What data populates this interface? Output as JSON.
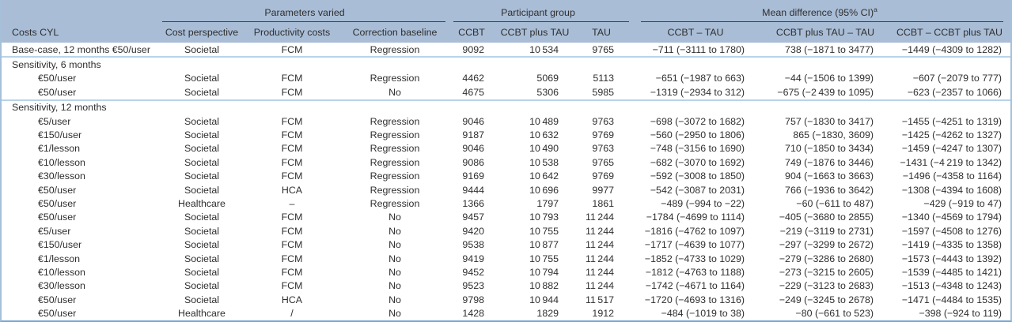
{
  "colors": {
    "header_background": "#a9bdd6",
    "header_rule": "#3c3c3c",
    "section_separator": "#b7d4ea",
    "outer_border": "#79a7d2",
    "text": "#2f2f2f"
  },
  "table": {
    "corner_label": "Costs CYL",
    "groups": [
      {
        "label": "Parameters varied",
        "sup": "",
        "sub": [
          "Cost perspective",
          "Productivity costs",
          "Correction baseline"
        ]
      },
      {
        "label": "Participant group",
        "sup": "",
        "sub": [
          "CCBT",
          "CCBT plus TAU",
          "TAU"
        ]
      },
      {
        "label": "Mean difference (95% CI)",
        "sup": "a",
        "sub": [
          "CCBT – TAU",
          "CCBT plus TAU – TAU",
          "CCBT – CCBT plus TAU"
        ]
      }
    ],
    "sections": [
      {
        "title": "",
        "rows": [
          {
            "indent": false,
            "cells": [
              "Base-case, 12 months €50/user",
              "Societal",
              "FCM",
              "Regression",
              "9092",
              "10 534",
              "9765",
              "−711 (−3111 to 1780)",
              "738 (−1871 to 3477)",
              "−1449 (−4309 to 1282)"
            ]
          }
        ]
      },
      {
        "title": "Sensitivity, 6 months",
        "rows": [
          {
            "indent": true,
            "cells": [
              "€50/user",
              "Societal",
              "FCM",
              "Regression",
              "4462",
              "5069",
              "5113",
              "−651 (−1987 to 663)",
              "−44 (−1506 to 1399)",
              "−607 (−2079 to 777)"
            ]
          },
          {
            "indent": true,
            "cells": [
              "€50/user",
              "Societal",
              "FCM",
              "No",
              "4675",
              "5306",
              "5985",
              "−1319 (−2934 to 312)",
              "−675 (−2 439 to 1095)",
              "−623 (−2357 to 1066)"
            ]
          }
        ]
      },
      {
        "title": "Sensitivity, 12 months",
        "rows": [
          {
            "indent": true,
            "cells": [
              "€5/user",
              "Societal",
              "FCM",
              "Regression",
              "9046",
              "10 489",
              "9763",
              "−698 (−3072 to 1682)",
              "757 (−1830 to 3417)",
              "−1455 (−4251 to 1319)"
            ]
          },
          {
            "indent": true,
            "cells": [
              "€150/user",
              "Societal",
              "FCM",
              "Regression",
              "9187",
              "10 632",
              "9769",
              "−560 (−2950 to 1806)",
              "865 (−1830, 3609)",
              "−1425 (−4262 to 1327)"
            ]
          },
          {
            "indent": true,
            "cells": [
              "€1/lesson",
              "Societal",
              "FCM",
              "Regression",
              "9046",
              "10 490",
              "9763",
              "−748 (−3156 to 1690)",
              "710 (−1850 to 3434)",
              "−1459 (−4247 to 1307)"
            ]
          },
          {
            "indent": true,
            "cells": [
              "€10/lesson",
              "Societal",
              "FCM",
              "Regression",
              "9086",
              "10 538",
              "9765",
              "−682 (−3070 to 1692)",
              "749 (−1876 to 3446)",
              "−1431 (−4 219 to 1342)"
            ]
          },
          {
            "indent": true,
            "cells": [
              "€30/lesson",
              "Societal",
              "FCM",
              "Regression",
              "9169",
              "10 642",
              "9769",
              "−592 (−3008 to 1850)",
              "904 (−1663 to 3663)",
              "−1496 (−4358 to 1164)"
            ]
          },
          {
            "indent": true,
            "cells": [
              "€50/user",
              "Societal",
              "HCA",
              "Regression",
              "9444",
              "10 696",
              "9977",
              "−542 (−3087 to 2031)",
              "766 (−1936 to 3642)",
              "−1308 (−4394 to 1608)"
            ]
          },
          {
            "indent": true,
            "cells": [
              "€50/user",
              "Healthcare",
              "–",
              "Regression",
              "1366",
              "1797",
              "1861",
              "−489 (−994 to −22)",
              "−60 (−611 to 487)",
              "−429 (−919 to 47)"
            ]
          },
          {
            "indent": true,
            "cells": [
              "€50/user",
              "Societal",
              "FCM",
              "No",
              "9457",
              "10 793",
              "11 244",
              "−1784 (−4699 to 1114)",
              "−405 (−3680 to 2855)",
              "−1340 (−4569 to 1794)"
            ]
          },
          {
            "indent": true,
            "cells": [
              "€5/user",
              "Societal",
              "FCM",
              "No",
              "9420",
              "10 755",
              "11 244",
              "−1816 (−4762 to 1097)",
              "−219 (−3119 to 2731)",
              "−1597 (−4508 to 1276)"
            ]
          },
          {
            "indent": true,
            "cells": [
              "€150/user",
              "Societal",
              "FCM",
              "No",
              "9538",
              "10 877",
              "11 244",
              "−1717 (−4639 to 1077)",
              "−297 (−3299 to 2672)",
              "−1419 (−4335 to 1358)"
            ]
          },
          {
            "indent": true,
            "cells": [
              "€1/lesson",
              "Societal",
              "FCM",
              "No",
              "9419",
              "10 755",
              "11 244",
              "−1852 (−4733 to 1029)",
              "−279 (−3286 to 2680)",
              "−1573 (−4443 to 1392)"
            ]
          },
          {
            "indent": true,
            "cells": [
              "€10/lesson",
              "Societal",
              "FCM",
              "No",
              "9452",
              "10 794",
              "11 244",
              "−1812 (−4763 to 1188)",
              "−273 (−3215 to 2605)",
              "−1539 (−4485 to 1421)"
            ]
          },
          {
            "indent": true,
            "cells": [
              "€30/lesson",
              "Societal",
              "FCM",
              "No",
              "9523",
              "10 882",
              "11 244",
              "−1742 (−4671 to 1164)",
              "−229 (−3123 to 2683)",
              "−1513 (−4348 to 1243)"
            ]
          },
          {
            "indent": true,
            "cells": [
              "€50/user",
              "Societal",
              "HCA",
              "No",
              "9798",
              "10 944",
              "11 517",
              "−1720 (−4693 to 1316)",
              "−249 (−3245 to 2678)",
              "−1471 (−4484 to 1535)"
            ]
          },
          {
            "indent": true,
            "cells": [
              "€50/user",
              "Healthcare",
              "/",
              "No",
              "1428",
              "1829",
              "1912",
              "−484 (−1019 to 38)",
              "−80 (−661 to 523)",
              "−398 (−924 to 119)"
            ]
          }
        ]
      }
    ]
  }
}
